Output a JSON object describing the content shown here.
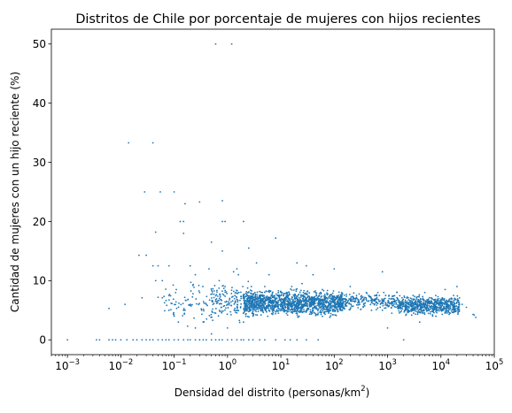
{
  "chart_data": {
    "type": "scatter",
    "title": "Distritos de Chile por porcentaje de mujeres con hijos recientes",
    "xlabel": {
      "prefix": "Densidad del distrito (personas/km",
      "sup": "2",
      "suffix": ")"
    },
    "ylabel": "Cantidad de mujeres con un hijo reciente (%)",
    "x_scale": "log",
    "xlim": [
      0.0005,
      100000
    ],
    "ylim": [
      -2.5,
      52.5
    ],
    "grid": false,
    "color": "#1f77b4",
    "x_ticks": [
      {
        "value": 0.001,
        "base": "10",
        "exp": "−3"
      },
      {
        "value": 0.01,
        "base": "10",
        "exp": "−2"
      },
      {
        "value": 0.1,
        "base": "10",
        "exp": "−1"
      },
      {
        "value": 1,
        "base": "10",
        "exp": "0"
      },
      {
        "value": 10,
        "base": "10",
        "exp": "1"
      },
      {
        "value": 100,
        "base": "10",
        "exp": "2"
      },
      {
        "value": 1000,
        "base": "10",
        "exp": "3"
      },
      {
        "value": 10000,
        "base": "10",
        "exp": "4"
      },
      {
        "value": 100000,
        "base": "10",
        "exp": "5"
      }
    ],
    "y_ticks": [
      {
        "value": 0,
        "label": "0"
      },
      {
        "value": 10,
        "label": "10"
      },
      {
        "value": 20,
        "label": "20"
      },
      {
        "value": 30,
        "label": "30"
      },
      {
        "value": 40,
        "label": "40"
      },
      {
        "value": 50,
        "label": "50"
      }
    ],
    "points": [
      [
        0.001,
        0
      ],
      [
        0.0035,
        0
      ],
      [
        0.004,
        0
      ],
      [
        0.006,
        0
      ],
      [
        0.007,
        0
      ],
      [
        0.008,
        0
      ],
      [
        0.01,
        0
      ],
      [
        0.013,
        0
      ],
      [
        0.017,
        0
      ],
      [
        0.02,
        0
      ],
      [
        0.025,
        0
      ],
      [
        0.03,
        0
      ],
      [
        0.035,
        0
      ],
      [
        0.04,
        0
      ],
      [
        0.05,
        0
      ],
      [
        0.06,
        0
      ],
      [
        0.07,
        0
      ],
      [
        0.08,
        0
      ],
      [
        0.1,
        0
      ],
      [
        0.12,
        0
      ],
      [
        0.15,
        0
      ],
      [
        0.18,
        0
      ],
      [
        0.2,
        0
      ],
      [
        0.25,
        0
      ],
      [
        0.3,
        0
      ],
      [
        0.35,
        0
      ],
      [
        0.4,
        0
      ],
      [
        0.5,
        0
      ],
      [
        0.6,
        0
      ],
      [
        0.7,
        0
      ],
      [
        0.8,
        0
      ],
      [
        1,
        0
      ],
      [
        1.2,
        0
      ],
      [
        1.5,
        0
      ],
      [
        1.8,
        0
      ],
      [
        2,
        0
      ],
      [
        2.5,
        0
      ],
      [
        3,
        0
      ],
      [
        4,
        0
      ],
      [
        5,
        0
      ],
      [
        8,
        0
      ],
      [
        12,
        0
      ],
      [
        15,
        0
      ],
      [
        20,
        0
      ],
      [
        30,
        0
      ],
      [
        50,
        0
      ],
      [
        2000,
        0
      ],
      [
        0.6,
        50
      ],
      [
        1.2,
        50
      ],
      [
        0.014,
        33.3
      ],
      [
        0.04,
        33.3
      ],
      [
        0.028,
        25
      ],
      [
        0.055,
        25
      ],
      [
        0.1,
        25
      ],
      [
        0.3,
        23.3
      ],
      [
        0.8,
        23.5
      ],
      [
        0.16,
        23
      ],
      [
        0.15,
        20
      ],
      [
        0.13,
        20
      ],
      [
        0.9,
        20
      ],
      [
        0.8,
        20
      ],
      [
        2,
        20
      ],
      [
        0.045,
        18.2
      ],
      [
        0.15,
        18
      ],
      [
        0.5,
        16.5
      ],
      [
        8,
        17.2
      ],
      [
        0.8,
        15
      ],
      [
        2.5,
        15.5
      ],
      [
        0.022,
        14.3
      ],
      [
        0.03,
        14.3
      ],
      [
        0.04,
        12.5
      ],
      [
        0.05,
        12.5
      ],
      [
        0.08,
        12.5
      ],
      [
        0.2,
        12.5
      ],
      [
        0.045,
        10
      ],
      [
        0.06,
        10
      ],
      [
        0.25,
        11
      ],
      [
        0.45,
        12
      ],
      [
        0.7,
        10
      ],
      [
        1.3,
        11.5
      ],
      [
        1.5,
        12
      ],
      [
        1.6,
        11
      ],
      [
        0.006,
        5.3
      ],
      [
        0.012,
        6
      ],
      [
        0.025,
        7.1
      ],
      [
        0.05,
        7.2
      ],
      [
        0.06,
        7.1
      ],
      [
        0.08,
        5
      ],
      [
        0.1,
        4
      ],
      [
        0.12,
        3
      ],
      [
        0.15,
        5
      ],
      [
        0.2,
        6
      ],
      [
        0.25,
        2
      ],
      [
        0.35,
        3
      ],
      [
        0.3,
        8
      ],
      [
        0.5,
        1
      ],
      [
        1,
        2
      ],
      [
        2,
        3
      ],
      [
        3,
        4
      ],
      [
        0.9,
        9
      ],
      [
        0.4,
        6
      ],
      [
        0.6,
        4.5
      ],
      [
        1.1,
        7
      ],
      [
        3.5,
        13
      ],
      [
        5,
        9
      ],
      [
        6,
        11
      ],
      [
        20,
        13
      ],
      [
        30,
        12.5
      ],
      [
        40,
        11
      ],
      [
        100,
        12
      ],
      [
        800,
        11.5
      ],
      [
        1000,
        2
      ],
      [
        4000,
        3
      ],
      [
        20000,
        9
      ],
      [
        40000,
        4.3
      ],
      [
        45000,
        3.8
      ],
      [
        42000,
        4.2
      ],
      [
        30000,
        5.5
      ],
      [
        25000,
        6
      ],
      [
        18000,
        7
      ],
      [
        15000,
        4.5
      ],
      [
        12000,
        8.5
      ],
      [
        8000,
        7.5
      ],
      [
        6000,
        5
      ],
      [
        5000,
        8
      ],
      [
        3000,
        7.5
      ],
      [
        2500,
        5
      ],
      [
        2000,
        6
      ],
      [
        1500,
        8
      ],
      [
        1200,
        4.5
      ],
      [
        900,
        7
      ],
      [
        700,
        6.5
      ],
      [
        500,
        5
      ],
      [
        400,
        8
      ],
      [
        300,
        6
      ],
      [
        250,
        7
      ],
      [
        200,
        9
      ],
      [
        150,
        5.5
      ],
      [
        120,
        7.5
      ],
      [
        80,
        6
      ],
      [
        60,
        8.5
      ],
      [
        50,
        4.5
      ],
      [
        40,
        7
      ],
      [
        35,
        6
      ],
      [
        25,
        9.5
      ],
      [
        18,
        5
      ],
      [
        14,
        7
      ],
      [
        10,
        8
      ],
      [
        9,
        4.5
      ],
      [
        7,
        6.5
      ],
      [
        6,
        5
      ],
      [
        4,
        7.5
      ],
      [
        3.5,
        6
      ],
      [
        2.8,
        9
      ],
      [
        2.2,
        5
      ],
      [
        1.8,
        7
      ],
      [
        15000,
        6.5
      ],
      [
        10000,
        5
      ],
      [
        9000,
        6
      ],
      [
        7000,
        4
      ],
      [
        4000,
        6.5
      ],
      [
        3500,
        5.5
      ],
      [
        800,
        5
      ],
      [
        600,
        7.5
      ],
      [
        350,
        5.5
      ],
      [
        180,
        6.5
      ],
      [
        90,
        7
      ],
      [
        70,
        5.5
      ],
      [
        45,
        8
      ],
      [
        28,
        6.5
      ],
      [
        22,
        4
      ],
      [
        16,
        9
      ],
      [
        12,
        5.5
      ],
      [
        8,
        7
      ],
      [
        5,
        5.5
      ],
      [
        4.5,
        8
      ],
      [
        3,
        5
      ],
      [
        2.5,
        7
      ]
    ],
    "clusters": [
      {
        "x_log_min": 0.3,
        "x_log_max": 2.2,
        "y_mean": 6.2,
        "y_spread": 1.6,
        "count": 1400
      },
      {
        "x_log_min": 2.2,
        "x_log_max": 3.2,
        "y_mean": 6.5,
        "y_spread": 1.1,
        "count": 220
      },
      {
        "x_log_min": 3.2,
        "x_log_max": 4.35,
        "y_mean": 5.8,
        "y_spread": 1.2,
        "count": 650
      },
      {
        "x_log_min": -0.3,
        "x_log_max": 0.5,
        "y_mean": 6.5,
        "y_spread": 2.4,
        "count": 180
      },
      {
        "x_log_min": -1.2,
        "x_log_max": -0.2,
        "y_mean": 6.5,
        "y_spread": 3.0,
        "count": 80
      }
    ]
  }
}
